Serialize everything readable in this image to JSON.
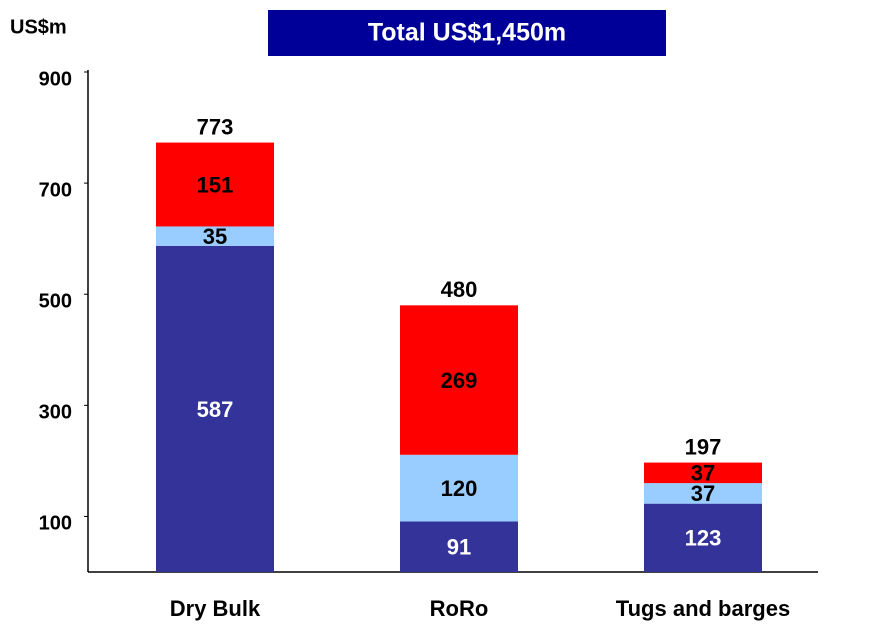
{
  "chart_data": {
    "type": "stacked_bar",
    "title": "Total US$1,450m",
    "y_label": "US$m",
    "categories": [
      "Dry Bulk",
      "RoRo",
      "Tugs and barges"
    ],
    "series": [
      {
        "color": "#333399",
        "label_color": "#ffffff",
        "values": [
          587,
          91,
          123
        ]
      },
      {
        "color": "#99ccff",
        "label_color": "#000000",
        "values": [
          35,
          120,
          37
        ]
      },
      {
        "color": "#ff0000",
        "label_color": "#000000",
        "values": [
          151,
          269,
          37
        ]
      }
    ],
    "totals": [
      773,
      480,
      197
    ],
    "ylim": [
      0,
      900
    ],
    "yticks": [
      100,
      300,
      500,
      700,
      900
    ],
    "grid": false,
    "title_box_color": "#000099"
  }
}
